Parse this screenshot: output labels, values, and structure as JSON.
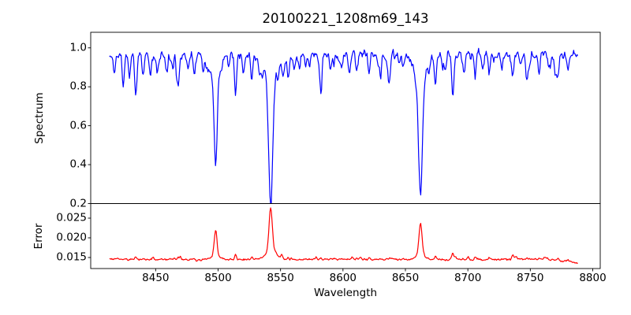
{
  "figure": {
    "title": "20100221_1208m69_143",
    "xlabel": "Wavelength",
    "background_color": "#ffffff",
    "frame_color": "#000000",
    "text_color": "#000000"
  },
  "chart_data": [
    {
      "type": "line",
      "name": "spectrum",
      "ylabel": "Spectrum",
      "line_color": "#0000ff",
      "xlim": [
        8398,
        8806
      ],
      "ylim": [
        0.2,
        1.08
      ],
      "yticks": [
        1.0,
        0.8,
        0.6,
        0.4,
        0.2
      ],
      "ytick_labels": [
        "1.0",
        "0.8",
        "0.6",
        "0.4",
        "0.2"
      ],
      "x_range": [
        8413,
        8788
      ],
      "continuum": 0.965,
      "noise_amplitude": 0.017,
      "seed": 11,
      "default_sigma": 0.8,
      "absorption_lines_format": [
        "wavelength",
        "depth",
        "sigma",
        "wing_fraction"
      ],
      "absorption_lines": [
        [
          8498.0,
          0.575,
          1.25,
          0.16
        ],
        [
          8542.1,
          0.76,
          1.6,
          0.18
        ],
        [
          8662.1,
          0.715,
          1.5,
          0.17
        ],
        [
          8417,
          0.08
        ],
        [
          8424,
          0.13
        ],
        [
          8429,
          0.07
        ],
        [
          8434,
          0.18
        ],
        [
          8440,
          0.08
        ],
        [
          8446,
          0.07
        ],
        [
          8452,
          0.06
        ],
        [
          8459,
          0.08
        ],
        [
          8463,
          0.06
        ],
        [
          8468,
          0.12
        ],
        [
          8476,
          0.07
        ],
        [
          8481,
          0.11
        ],
        [
          8488,
          0.08
        ],
        [
          8493,
          0.06
        ],
        [
          8514,
          0.19
        ],
        [
          8520,
          0.09
        ],
        [
          8527,
          0.1
        ],
        [
          8533,
          0.07
        ],
        [
          8552,
          0.07
        ],
        [
          8556,
          0.09
        ],
        [
          8565,
          0.08
        ],
        [
          8573,
          0.06
        ],
        [
          8582,
          0.11
        ],
        [
          8590,
          0.06
        ],
        [
          8599,
          0.08
        ],
        [
          8605,
          0.07
        ],
        [
          8611,
          0.1
        ],
        [
          8621,
          0.1
        ],
        [
          8630,
          0.06
        ],
        [
          8637,
          0.07
        ],
        [
          8648,
          0.08
        ],
        [
          8674,
          0.14
        ],
        [
          8682,
          0.08
        ],
        [
          8688,
          0.2
        ],
        [
          8697,
          0.09
        ],
        [
          8706,
          0.11
        ],
        [
          8712,
          0.07
        ],
        [
          8717,
          0.1
        ],
        [
          8727,
          0.08
        ],
        [
          8736,
          0.1
        ],
        [
          8742,
          0.06
        ],
        [
          8747,
          0.08
        ],
        [
          8757,
          0.09
        ],
        [
          8765,
          0.07
        ],
        [
          8772,
          0.1
        ],
        [
          8780,
          0.07
        ]
      ],
      "micro_lines": {
        "count": 60,
        "depth_range": [
          0.015,
          0.07
        ],
        "sigma_range": [
          0.5,
          1.0
        ]
      }
    },
    {
      "type": "line",
      "name": "error",
      "ylabel": "Error",
      "line_color": "#ff0000",
      "xlim": [
        8398,
        8806
      ],
      "ylim": [
        0.0122,
        0.0287
      ],
      "yticks": [
        0.025,
        0.02,
        0.015
      ],
      "ytick_labels": [
        "0.025",
        "0.020",
        "0.015"
      ],
      "xticks": [
        8450,
        8500,
        8550,
        8600,
        8650,
        8700,
        8750,
        8800
      ],
      "xtick_labels": [
        "8450",
        "8500",
        "8550",
        "8600",
        "8650",
        "8700",
        "8750",
        "8800"
      ],
      "x_range": [
        8413,
        8788
      ],
      "baseline": 0.0145,
      "noise_amplitude": 0.0002,
      "seed": 29,
      "default_sigma": 0.7,
      "peaks_format": [
        "wavelength",
        "height",
        "sigma",
        "wing_fraction"
      ],
      "peaks": [
        [
          8498.0,
          0.007,
          1.1,
          0.15
        ],
        [
          8542.1,
          0.0131,
          1.3,
          0.18
        ],
        [
          8662.1,
          0.0089,
          1.2,
          0.16
        ],
        [
          8434,
          0.0007
        ],
        [
          8468,
          0.0006
        ],
        [
          8514,
          0.0014
        ],
        [
          8527,
          0.0005
        ],
        [
          8556,
          0.0005
        ],
        [
          8582,
          0.0006
        ],
        [
          8611,
          0.0005
        ],
        [
          8621,
          0.0005
        ],
        [
          8674,
          0.0007
        ],
        [
          8688,
          0.0016
        ],
        [
          8706,
          0.0006
        ],
        [
          8717,
          0.0005
        ],
        [
          8736,
          0.0005
        ],
        [
          8757,
          0.0004
        ],
        [
          8772,
          0.0005
        ]
      ],
      "micro_bumps": {
        "count": 25,
        "height_range": [
          0.0002,
          0.0007
        ],
        "sigma_range": [
          0.5,
          0.9
        ]
      },
      "end_slope": {
        "start": 8768,
        "per_angstrom": -4e-05
      }
    }
  ]
}
